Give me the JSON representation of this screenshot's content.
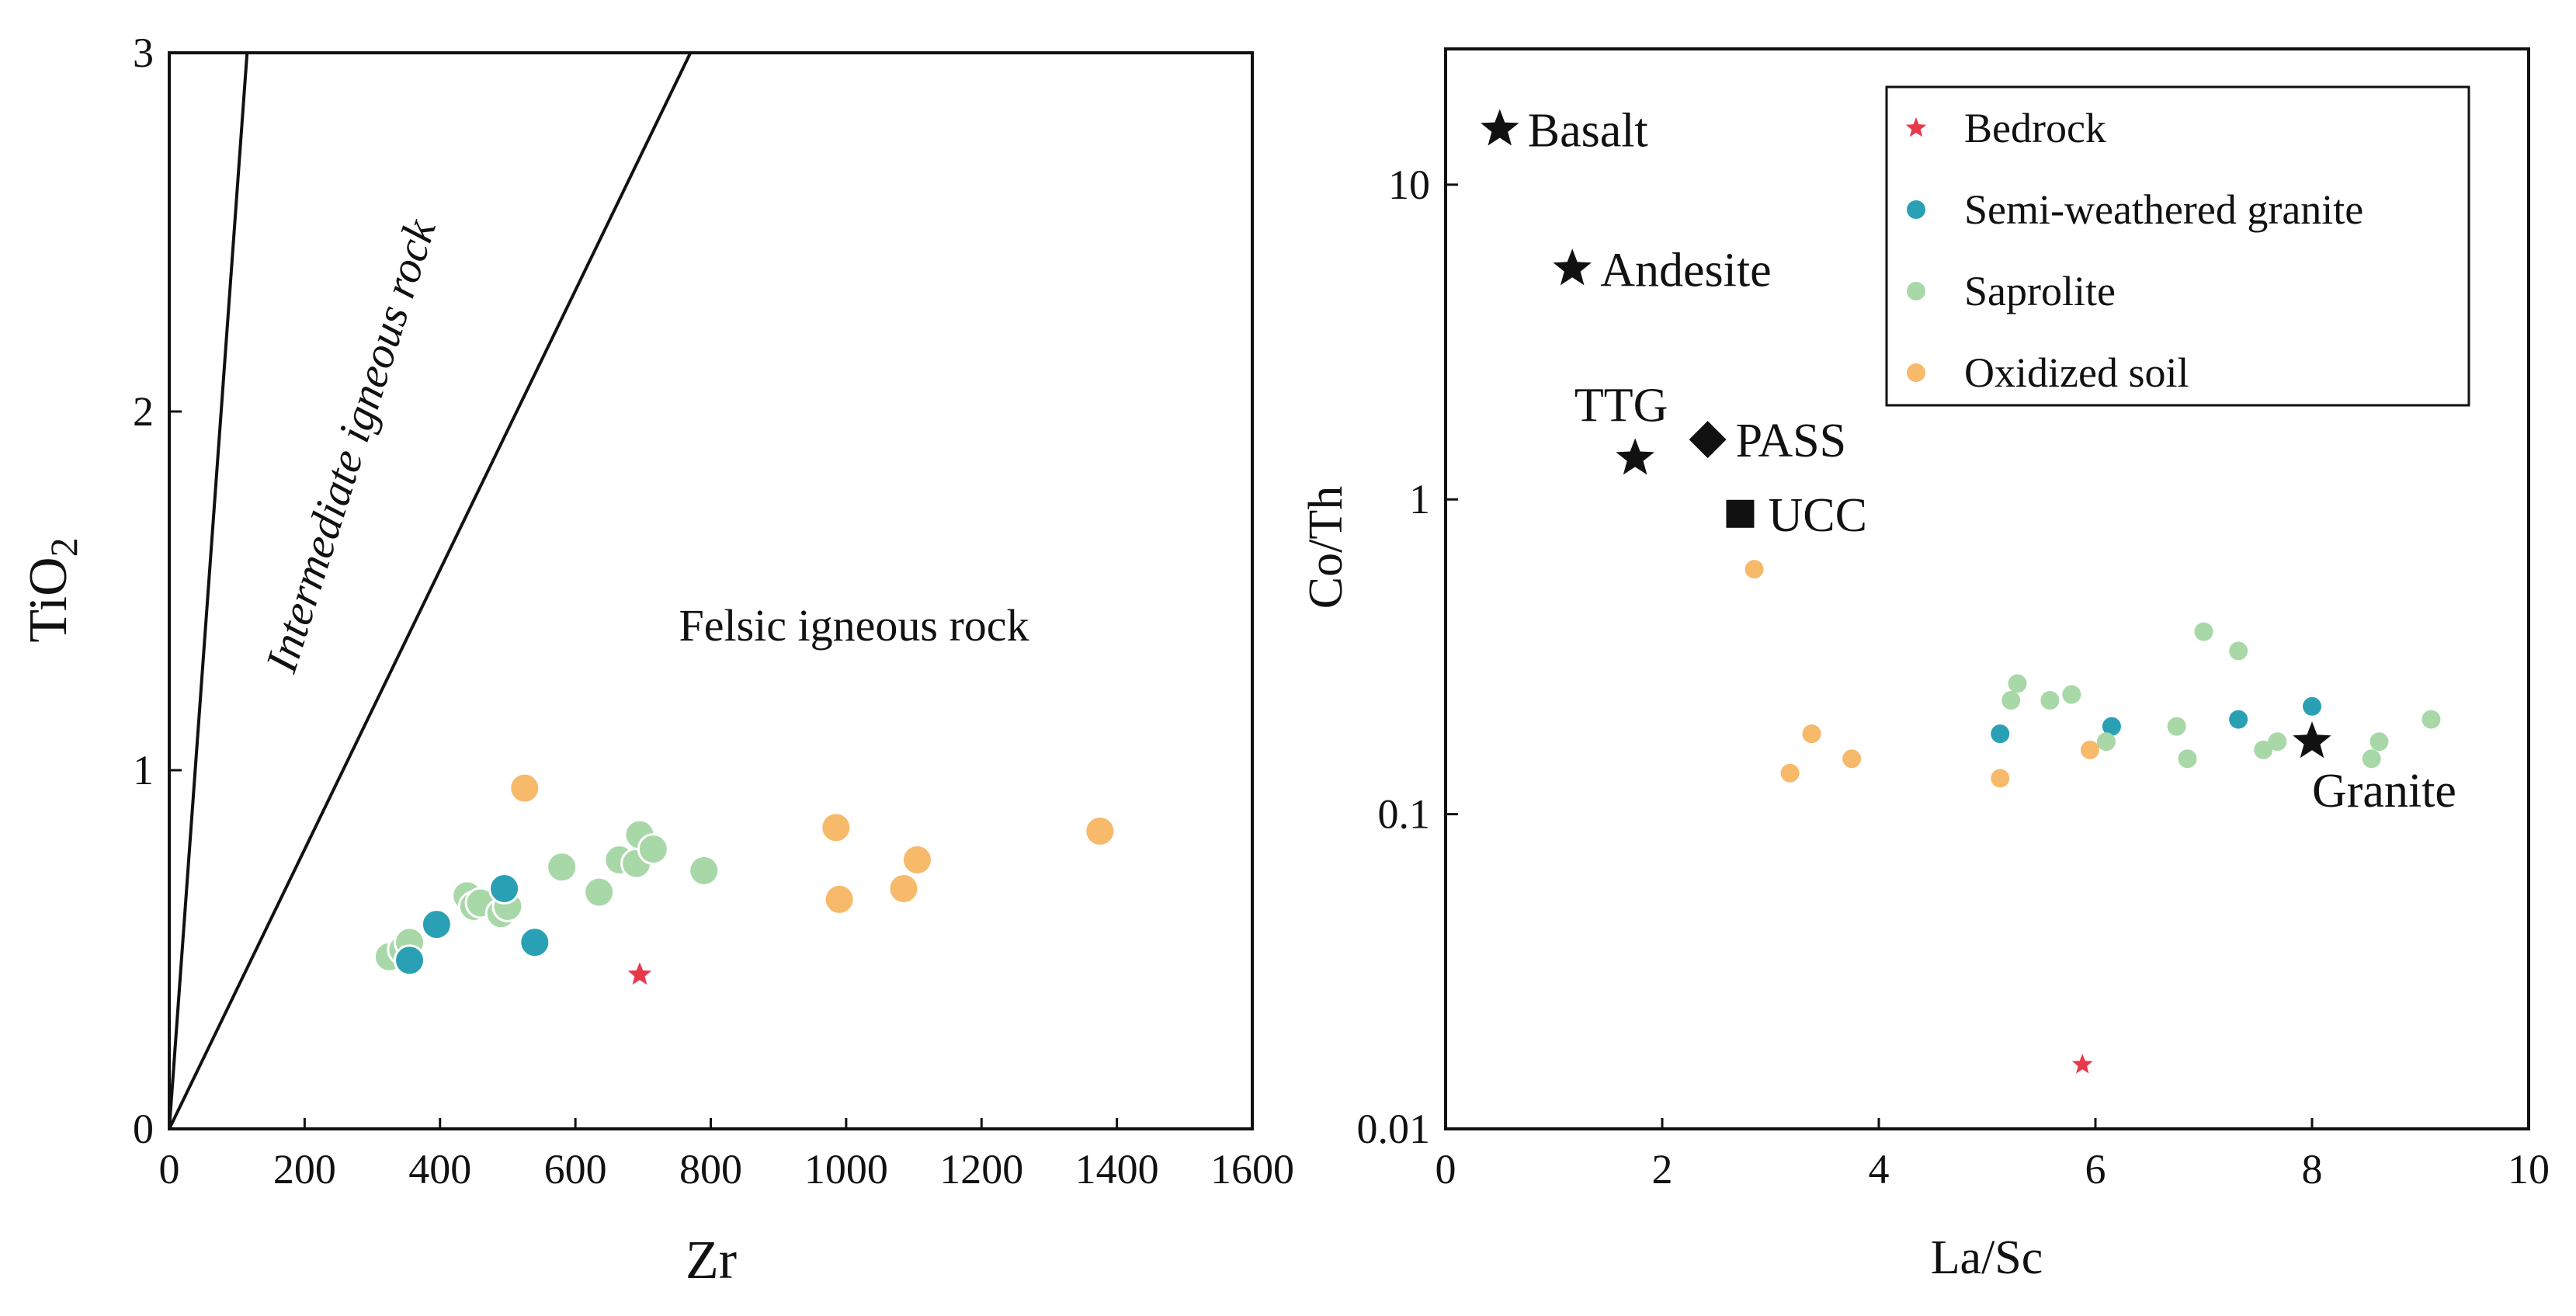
{
  "colors": {
    "bedrock": "#e8394a",
    "semi_weathered": "#2aa0b4",
    "saprolite": "#a8d8a8",
    "oxidized": "#f7b96a",
    "reference": "#111111",
    "axis": "#111111"
  },
  "chart_data": [
    {
      "type": "scatter",
      "xlabel": "Zr",
      "ylabel": "TiO2",
      "ylabel_main": "TiO",
      "ylabel_sub": "2",
      "xlim": [
        0,
        1600
      ],
      "ylim": [
        0,
        3
      ],
      "xticks": [
        0,
        200,
        400,
        600,
        800,
        1000,
        1200,
        1400,
        1600
      ],
      "yticks": [
        0,
        1,
        2,
        3
      ],
      "xtick_labels": [
        "0",
        "200",
        "400",
        "600",
        "800",
        "1000",
        "1200",
        "1400",
        "1600"
      ],
      "ytick_labels": [
        "0",
        "1",
        "2",
        "3"
      ],
      "boundary_lines": [
        {
          "from": [
            0,
            0
          ],
          "to": [
            115,
            3
          ]
        },
        {
          "from": [
            0,
            0
          ],
          "to": [
            770,
            3
          ]
        }
      ],
      "region_labels": {
        "intermediate": "Intermediate igneous rock",
        "felsic": "Felsic igneous rock"
      },
      "series": [
        {
          "name": "Saprolite",
          "key": "saprolite",
          "marker": "circle",
          "points": [
            [
              325,
              0.48
            ],
            [
              345,
              0.5
            ],
            [
              355,
              0.52
            ],
            [
              440,
              0.65
            ],
            [
              450,
              0.62
            ],
            [
              460,
              0.63
            ],
            [
              490,
              0.6
            ],
            [
              500,
              0.62
            ],
            [
              580,
              0.73
            ],
            [
              635,
              0.66
            ],
            [
              665,
              0.75
            ],
            [
              690,
              0.74
            ],
            [
              695,
              0.82
            ],
            [
              715,
              0.78
            ],
            [
              790,
              0.72
            ]
          ]
        },
        {
          "name": "Semi-weathered granite",
          "key": "semi_weathered",
          "marker": "circle",
          "points": [
            [
              355,
              0.47
            ],
            [
              395,
              0.57
            ],
            [
              495,
              0.67
            ],
            [
              540,
              0.52
            ]
          ]
        },
        {
          "name": "Oxidized soil",
          "key": "oxidized",
          "marker": "circle",
          "points": [
            [
              525,
              0.95
            ],
            [
              985,
              0.84
            ],
            [
              990,
              0.64
            ],
            [
              1085,
              0.67
            ],
            [
              1105,
              0.75
            ],
            [
              1375,
              0.83
            ]
          ]
        },
        {
          "name": "Bedrock",
          "key": "bedrock",
          "marker": "star",
          "points": [
            [
              695,
              0.43
            ]
          ]
        }
      ]
    },
    {
      "type": "scatter",
      "xlabel": "La/Sc",
      "ylabel": "Co/Th",
      "xscale": "linear",
      "yscale": "log",
      "xlim": [
        0,
        10
      ],
      "ylim": [
        0.01,
        27
      ],
      "xticks": [
        0,
        2,
        4,
        6,
        8,
        10
      ],
      "yticks": [
        0.01,
        0.1,
        1,
        10
      ],
      "xtick_labels": [
        "0",
        "2",
        "4",
        "6",
        "8",
        "10"
      ],
      "ytick_labels": [
        "0.01",
        "0.1",
        "1",
        "10"
      ],
      "legend": {
        "position": "top-right",
        "entries": [
          {
            "label": "Bedrock",
            "key": "bedrock",
            "marker": "star"
          },
          {
            "label": "Semi-weathered granite",
            "key": "semi_weathered",
            "marker": "circle"
          },
          {
            "label": "Saprolite",
            "key": "saprolite",
            "marker": "circle"
          },
          {
            "label": "Oxidized soil",
            "key": "oxidized",
            "marker": "circle"
          }
        ]
      },
      "reference_points": [
        {
          "label": "Basalt",
          "x": 0.5,
          "y": 15,
          "marker": "star",
          "label_side": "right"
        },
        {
          "label": "Andesite",
          "x": 1.17,
          "y": 5.4,
          "marker": "star",
          "label_side": "right"
        },
        {
          "label": "TTG",
          "x": 1.75,
          "y": 1.35,
          "marker": "star",
          "label_side": "above-left"
        },
        {
          "label": "PASS",
          "x": 2.42,
          "y": 1.55,
          "marker": "diamond",
          "label_side": "right"
        },
        {
          "label": "UCC",
          "x": 2.72,
          "y": 0.9,
          "marker": "square",
          "label_side": "right"
        },
        {
          "label": "Granite",
          "x": 8.0,
          "y": 0.17,
          "marker": "star",
          "label_side": "below"
        }
      ],
      "series": [
        {
          "name": "Semi-weathered granite",
          "key": "semi_weathered",
          "marker": "circle",
          "points": [
            [
              5.12,
              0.18
            ],
            [
              6.15,
              0.19
            ],
            [
              7.32,
              0.2
            ],
            [
              8.0,
              0.22
            ]
          ]
        },
        {
          "name": "Saprolite",
          "key": "saprolite",
          "marker": "circle",
          "points": [
            [
              5.22,
              0.23
            ],
            [
              5.28,
              0.26
            ],
            [
              5.58,
              0.23
            ],
            [
              5.78,
              0.24
            ],
            [
              6.1,
              0.17
            ],
            [
              6.75,
              0.19
            ],
            [
              6.85,
              0.15
            ],
            [
              7.0,
              0.38
            ],
            [
              7.32,
              0.33
            ],
            [
              7.55,
              0.16
            ],
            [
              7.68,
              0.17
            ],
            [
              8.55,
              0.15
            ],
            [
              8.62,
              0.17
            ],
            [
              9.1,
              0.2
            ]
          ]
        },
        {
          "name": "Oxidized soil",
          "key": "oxidized",
          "marker": "circle",
          "points": [
            [
              2.85,
              0.6
            ],
            [
              3.18,
              0.135
            ],
            [
              3.38,
              0.18
            ],
            [
              3.75,
              0.15
            ],
            [
              5.12,
              0.13
            ],
            [
              5.95,
              0.16
            ]
          ]
        },
        {
          "name": "Bedrock",
          "key": "bedrock",
          "marker": "star",
          "points": [
            [
              5.88,
              0.016
            ]
          ]
        }
      ]
    }
  ]
}
